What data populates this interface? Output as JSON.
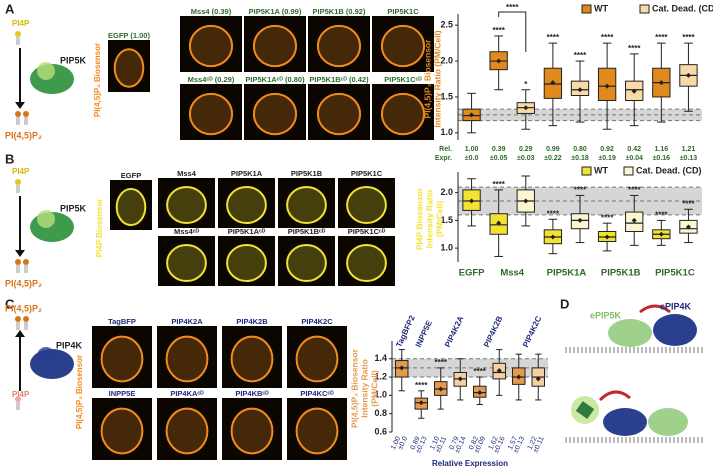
{
  "panels": {
    "A": {
      "letter": "A",
      "substrate": "PI4P",
      "enzyme": "PIP5K",
      "product": "PI(4,5)P₂",
      "biosensor_label": "PI(4,5)P₂ Biosensor",
      "images": [
        "EGFP (1.00)",
        "Mss4 (0.39)",
        "PIP5K1A (0.99)",
        "PIP5K1B (0.92)",
        "PIP5K1C",
        "Mss4ᶜᴰ (0.29)",
        "PIP5K1Aᶜᴰ (0.80)",
        "PIP5K1Bᶜᴰ (0.42)",
        "PIP5K1Cᶜᴰ"
      ]
    },
    "B": {
      "letter": "B",
      "substrate": "PI4P",
      "enzyme": "PIP5K",
      "product": "PI(4,5)P₂",
      "biosensor_label": "PI4P Biosensor",
      "images": [
        "EGFP",
        "Mss4",
        "PIP5K1A",
        "PIP5K1B",
        "PIP5K1C",
        "Mss4ᶜᴰ",
        "PIP5K1Aᶜᴰ",
        "PIP5K1Bᶜᴰ",
        "PIP5K1Cᶜᴰ"
      ]
    },
    "C": {
      "letter": "C",
      "substrate": "PI4P",
      "enzyme": "PIP4K",
      "product": "PI(4,5)P₂",
      "biosensor_label": "PI(4,5)P₂ Biosensor",
      "images": [
        "TagBFP",
        "PIP4K2A",
        "PIP4K2B",
        "PIP4K2C",
        "INPP5E",
        "PIP4KAᶜᴰ",
        "PIP4KBᶜᴰ",
        "PIP4KCᶜᴰ"
      ]
    },
    "D": {
      "letter": "D",
      "labels": [
        "ePIP5K",
        "ePIP4K"
      ]
    }
  },
  "chart_data": [
    {
      "type": "box",
      "ylabel": [
        "PI(4,5)P₂ Biosensor",
        "Intensity Ratio (PM/Cell)"
      ],
      "ylim": [
        0.9,
        2.6
      ],
      "yticks": [
        {
          "value": 1,
          "label": "1.0"
        },
        1.5,
        {
          "value": 2,
          "label": "2.0"
        },
        2.5
      ],
      "reference_band": [
        1.17,
        1.33
      ],
      "reference_lines": [
        1.17,
        1.25,
        1.33
      ],
      "legend": "upper right",
      "bracket": "****",
      "series": [
        {
          "name": "WT",
          "color": "#e08a1e",
          "stars": [
            null,
            "****",
            "****",
            "****",
            "****"
          ],
          "values": [
            {
              "whislo": 1.0,
              "q1": 1.17,
              "med": 1.24,
              "q3": 1.33,
              "whishi": 1.55,
              "mean": 1.25
            },
            {
              "whislo": 1.6,
              "q1": 1.88,
              "med": 2.0,
              "q3": 2.13,
              "whishi": 2.35,
              "mean": 2.0
            },
            {
              "whislo": 1.1,
              "q1": 1.48,
              "med": 1.68,
              "q3": 1.9,
              "whishi": 2.25,
              "mean": 1.7
            },
            {
              "whislo": 1.05,
              "q1": 1.45,
              "med": 1.65,
              "q3": 1.9,
              "whishi": 2.25,
              "mean": 1.65
            },
            {
              "whislo": 1.15,
              "q1": 1.5,
              "med": 1.7,
              "q3": 1.9,
              "whishi": 2.25,
              "mean": 1.7
            }
          ]
        },
        {
          "name": "Cat. Dead. (CD)",
          "color": "#f8d9a8",
          "stars": [
            null,
            "*",
            "****",
            "****",
            "****"
          ],
          "values": [
            null,
            {
              "whislo": 1.05,
              "q1": 1.27,
              "med": 1.35,
              "q3": 1.42,
              "whishi": 1.6,
              "mean": 1.35
            },
            {
              "whislo": 1.15,
              "q1": 1.52,
              "med": 1.6,
              "q3": 1.72,
              "whishi": 2.0,
              "mean": 1.6
            },
            {
              "whislo": 1.1,
              "q1": 1.45,
              "med": 1.6,
              "q3": 1.72,
              "whishi": 2.1,
              "mean": 1.58
            },
            {
              "whislo": 1.3,
              "q1": 1.65,
              "med": 1.8,
              "q3": 1.95,
              "whishi": 2.25,
              "mean": 1.8
            }
          ]
        }
      ],
      "expression": {
        "label": [
          "Rel.",
          "Expr."
        ],
        "values": [
          "1.00",
          "0.39",
          "0.29",
          "0.99",
          "0.80",
          "0.92",
          "0.42",
          "1.16",
          "1.21"
        ],
        "errors": [
          "±0.0",
          "±0.05",
          "±0.03",
          "±0.22",
          "±0.18",
          "±0.19",
          "±0.04",
          "±0.16",
          "±0.13"
        ]
      }
    },
    {
      "type": "box",
      "ylabel": [
        "PI4P Biosensor",
        "Intensity Ratio",
        "(PM/Cell)"
      ],
      "ylim": [
        0.75,
        2.3
      ],
      "yticks": [
        {
          "value": 1,
          "label": "1.0"
        },
        1.5,
        {
          "value": 2,
          "label": "2.0"
        }
      ],
      "reference_band": [
        1.6,
        2.1
      ],
      "reference_lines": [
        1.6,
        1.85,
        2.1
      ],
      "legend": "upper right",
      "categories": [
        "EGFP",
        "Mss4",
        "PIP5K1A",
        "PIP5K1B",
        "PIP5K1C"
      ],
      "series": [
        {
          "name": "WT",
          "color": "#f2e234",
          "stars": [
            null,
            "****",
            "****",
            "****",
            "****"
          ],
          "values": [
            {
              "whislo": 1.4,
              "q1": 1.68,
              "med": 1.85,
              "q3": 2.05,
              "whishi": 2.25,
              "mean": 1.85
            },
            {
              "whislo": 0.85,
              "q1": 1.25,
              "med": 1.42,
              "q3": 1.62,
              "whishi": 2.05,
              "mean": 1.45
            },
            {
              "whislo": 0.9,
              "q1": 1.08,
              "med": 1.2,
              "q3": 1.33,
              "whishi": 1.52,
              "mean": 1.2
            },
            {
              "whislo": 0.95,
              "q1": 1.12,
              "med": 1.2,
              "q3": 1.3,
              "whishi": 1.45,
              "mean": 1.2
            },
            {
              "whislo": 1.05,
              "q1": 1.17,
              "med": 1.25,
              "q3": 1.33,
              "whishi": 1.5,
              "mean": 1.25
            }
          ]
        },
        {
          "name": "Cat. Dead. (CD)",
          "color": "#fbf6cf",
          "stars": [
            null,
            null,
            "****",
            "****",
            "****"
          ],
          "values": [
            null,
            {
              "whislo": 1.4,
              "q1": 1.65,
              "med": 1.85,
              "q3": 2.05,
              "whishi": 2.3,
              "mean": 1.85
            },
            {
              "whislo": 1.1,
              "q1": 1.35,
              "med": 1.5,
              "q3": 1.62,
              "whishi": 1.95,
              "mean": 1.5
            },
            {
              "whislo": 1.05,
              "q1": 1.3,
              "med": 1.45,
              "q3": 1.65,
              "whishi": 1.95,
              "mean": 1.5
            },
            {
              "whislo": 1.1,
              "q1": 1.27,
              "med": 1.35,
              "q3": 1.5,
              "whishi": 1.7,
              "mean": 1.38
            }
          ]
        }
      ]
    },
    {
      "type": "box",
      "ylabel": [
        "PI(4,5)P₂ Biosensor",
        "Intensity Ratio",
        "(PM/Cell)"
      ],
      "ylim": [
        0.6,
        1.55
      ],
      "yticks": [
        0.6,
        0.8,
        {
          "value": 1,
          "label": "1.0"
        },
        1.2,
        1.4
      ],
      "reference_band": [
        1.2,
        1.4
      ],
      "reference_lines": [
        1.2,
        1.3,
        1.4
      ],
      "categories": [
        "TagBFP2",
        "INPP5E",
        "PIP4K2A",
        "PIP4K2B",
        "PIP4K2C"
      ],
      "series": [
        {
          "color": "#e39a4a",
          "stars": [
            null,
            "****",
            "****",
            "****",
            null
          ],
          "values": [
            {
              "whislo": 1.05,
              "q1": 1.2,
              "med": 1.3,
              "q3": 1.38,
              "whishi": 1.5,
              "mean": 1.3
            },
            {
              "whislo": 0.75,
              "q1": 0.85,
              "med": 0.92,
              "q3": 0.97,
              "whishi": 1.05,
              "mean": 0.92
            },
            {
              "whislo": 0.85,
              "q1": 1.0,
              "med": 1.07,
              "q3": 1.15,
              "whishi": 1.3,
              "mean": 1.07
            },
            {
              "whislo": 0.9,
              "q1": 0.98,
              "med": 1.03,
              "q3": 1.1,
              "whishi": 1.2,
              "mean": 1.03
            },
            {
              "whislo": 0.95,
              "q1": 1.12,
              "med": 1.2,
              "q3": 1.3,
              "whishi": 1.45,
              "mean": 1.2
            }
          ]
        },
        {
          "color": "#f6cfa3",
          "stars": [
            null,
            null,
            null,
            null,
            null
          ],
          "values": [
            null,
            null,
            {
              "whislo": 0.95,
              "q1": 1.1,
              "med": 1.18,
              "q3": 1.25,
              "whishi": 1.4,
              "mean": 1.18
            },
            {
              "whislo": 1.0,
              "q1": 1.18,
              "med": 1.25,
              "q3": 1.35,
              "whishi": 1.5,
              "mean": 1.27
            },
            {
              "whislo": 0.95,
              "q1": 1.1,
              "med": 1.2,
              "q3": 1.3,
              "whishi": 1.45,
              "mean": 1.18
            }
          ]
        }
      ],
      "expression": {
        "label": [
          "Relative Expression"
        ],
        "values": [
          "1.00",
          "0.89",
          "1.10",
          "0.79",
          "0.82",
          "1.62",
          "1.57",
          "1.22"
        ],
        "errors": [
          "±0.0",
          "±0.13",
          "±0.11",
          "±0.14",
          "±0.09",
          "±0.16",
          "±0.13",
          "±0.11"
        ]
      }
    }
  ]
}
